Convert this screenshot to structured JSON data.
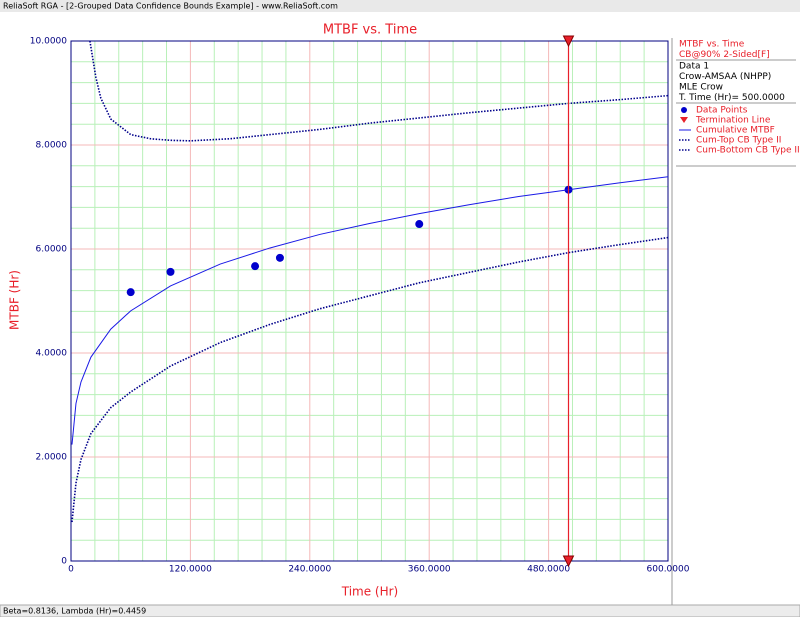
{
  "window_title": "ReliaSoft RGA - [2-Grouped Data Confidence Bounds Example] - www.ReliaSoft.com",
  "status": "Beta=0.8136, Lambda (Hr)=0.4459",
  "legend_header": [
    "MTBF vs. Time",
    "CB@90% 2-Sided[F]",
    "Data 1",
    "Crow-AMSAA (NHPP)",
    "MLE Crow",
    "T. Time (Hr)= 500.0000"
  ],
  "chart_data": {
    "type": "line",
    "title": "MTBF vs. Time",
    "x_label": "Time (Hr)",
    "y_label": "MTBF (Hr)",
    "xlim": [
      0,
      600
    ],
    "ylim": [
      0,
      10
    ],
    "xticks": [
      0,
      {
        "value": 120,
        "label": "120.0000"
      },
      {
        "value": 240,
        "label": "240.0000"
      },
      {
        "value": 360,
        "label": "360.0000"
      },
      {
        "value": 480,
        "label": "480.0000"
      },
      {
        "value": 600,
        "label": "600.0000"
      }
    ],
    "yticks": [
      0,
      {
        "value": 2,
        "label": "2.0000"
      },
      {
        "value": 4,
        "label": "4.0000"
      },
      {
        "value": 6,
        "label": "6.0000"
      },
      {
        "value": 8,
        "label": "8.0000"
      },
      {
        "value": 10,
        "label": "10.0000"
      }
    ],
    "grid": true,
    "minor_divisions": 5,
    "series": [
      {
        "name": "Data Points",
        "type": "scatter",
        "color": "#0000cc",
        "x": [
          60,
          100,
          185,
          210,
          350,
          500
        ],
        "values": [
          5.17,
          5.56,
          5.67,
          5.83,
          6.48,
          7.14
        ]
      },
      {
        "name": "Cumulative MTBF",
        "type": "line",
        "color": "#1a1ae6",
        "dash": "solid",
        "x": [
          1,
          5,
          10,
          20,
          40,
          60,
          100,
          150,
          200,
          250,
          300,
          350,
          400,
          450,
          500,
          550,
          600
        ],
        "values": [
          2.24,
          3.03,
          3.44,
          3.92,
          4.46,
          4.81,
          5.29,
          5.71,
          6.02,
          6.28,
          6.49,
          6.68,
          6.85,
          7.01,
          7.14,
          7.27,
          7.39
        ]
      },
      {
        "name": "Cum-Top CB Type II",
        "type": "line",
        "color": "#00008b",
        "dash": "dotted",
        "x": [
          19,
          25,
          30,
          40,
          60,
          80,
          100,
          120,
          160,
          200,
          250,
          300,
          350,
          400,
          450,
          500,
          550,
          600
        ],
        "values": [
          10,
          9.3,
          8.9,
          8.5,
          8.2,
          8.12,
          8.09,
          8.08,
          8.12,
          8.2,
          8.3,
          8.42,
          8.52,
          8.62,
          8.71,
          8.8,
          8.87,
          8.95
        ]
      },
      {
        "name": "Cum-Bottom CB Type II",
        "type": "line",
        "color": "#00008b",
        "dash": "dotted",
        "x": [
          1,
          5,
          10,
          20,
          40,
          60,
          100,
          150,
          200,
          250,
          300,
          350,
          400,
          450,
          500,
          550,
          600
        ],
        "values": [
          0.75,
          1.5,
          1.95,
          2.45,
          2.95,
          3.25,
          3.75,
          4.2,
          4.55,
          4.85,
          5.1,
          5.35,
          5.55,
          5.75,
          5.93,
          6.08,
          6.22
        ]
      }
    ],
    "termination_line": {
      "name": "Termination Line",
      "x": 500,
      "color": "#e8202a"
    }
  }
}
